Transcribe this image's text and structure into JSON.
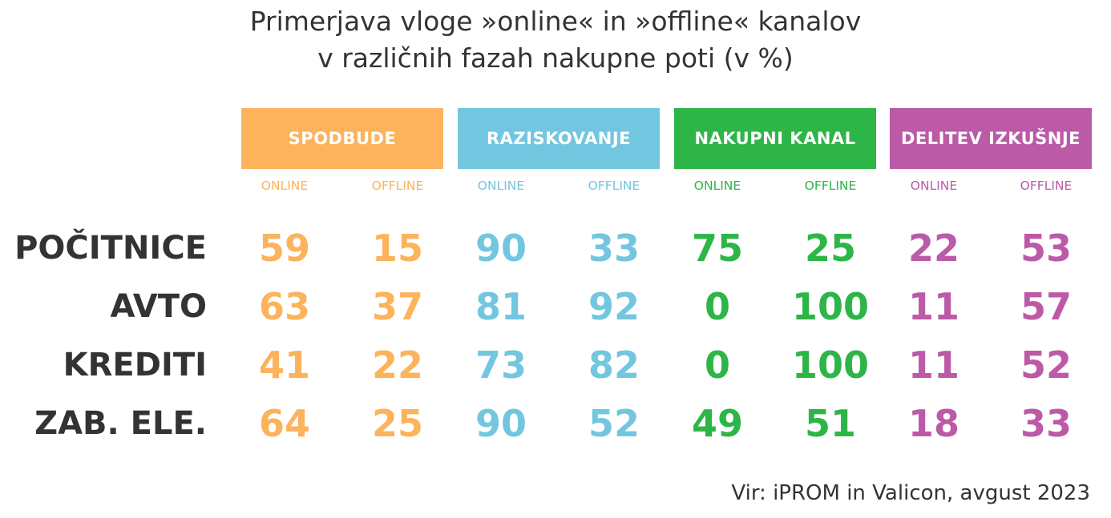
{
  "chart_data": {
    "type": "table",
    "title": [
      "Primerjava vloge »online« in »offline« kanalov",
      "v različnih fazah nakupne poti (v %)"
    ],
    "stages": [
      {
        "name": "SPODBUDE",
        "color": "#FCB35C"
      },
      {
        "name": "RAZISKOVANJE",
        "color": "#73C6E0"
      },
      {
        "name": "NAKUPNI KANAL",
        "color": "#2EB548"
      },
      {
        "name": "DELITEV IZKUŠNJE",
        "color": "#BC5AA7"
      }
    ],
    "sub_columns": [
      "ONLINE",
      "OFFLINE"
    ],
    "rows": [
      {
        "label": "POČITNICE",
        "values": [
          59,
          15,
          90,
          33,
          75,
          25,
          22,
          53
        ]
      },
      {
        "label": "AVTO",
        "values": [
          63,
          37,
          81,
          92,
          0,
          100,
          11,
          57
        ]
      },
      {
        "label": "KREDITI",
        "values": [
          41,
          22,
          73,
          82,
          0,
          100,
          11,
          52
        ]
      },
      {
        "label": "ZAB. ELE.",
        "values": [
          64,
          25,
          90,
          52,
          49,
          51,
          18,
          33
        ]
      }
    ],
    "source": "Vir: iPROM in Valicon, avgust 2023"
  }
}
